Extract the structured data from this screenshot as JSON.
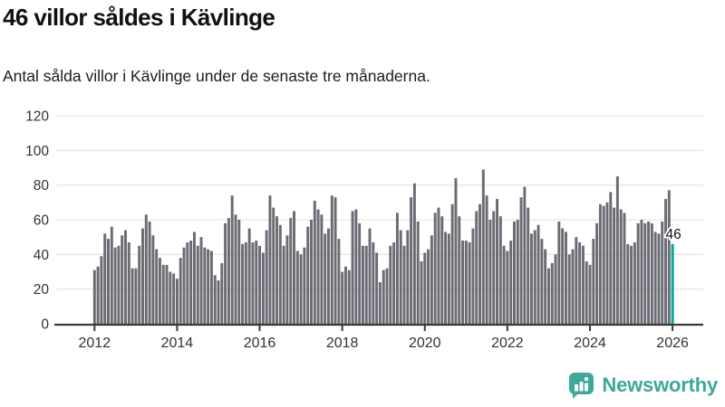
{
  "header": {
    "title": "46 villor såldes i Kävlinge",
    "subtitle": "Antal sålda villor i Kävlinge under de senaste tre månaderna."
  },
  "chart_data": {
    "type": "bar",
    "title": "46 villor såldes i Kävlinge",
    "subtitle": "Antal sålda villor i Kävlinge under de senaste tre månaderna.",
    "x_unit": "month",
    "x_start": "2012-01",
    "x_end": "2026-01",
    "ylim": [
      0,
      120
    ],
    "yticks": [
      0,
      20,
      40,
      60,
      80,
      100,
      120
    ],
    "xticks": [
      2012,
      2014,
      2016,
      2018,
      2020,
      2022,
      2024,
      2026
    ],
    "grid": "horizontal",
    "legend": "none",
    "values": [
      31,
      33,
      39,
      52,
      49,
      56,
      44,
      45,
      51,
      54,
      47,
      32,
      32,
      45,
      55,
      63,
      59,
      51,
      43,
      38,
      34,
      34,
      30,
      29,
      26,
      38,
      44,
      47,
      48,
      53,
      45,
      50,
      44,
      43,
      42,
      28,
      25,
      35,
      58,
      61,
      74,
      63,
      60,
      46,
      47,
      55,
      47,
      48,
      45,
      41,
      54,
      74,
      67,
      62,
      57,
      45,
      51,
      61,
      65,
      42,
      40,
      44,
      56,
      60,
      71,
      66,
      63,
      52,
      55,
      74,
      73,
      49,
      30,
      33,
      31,
      65,
      66,
      58,
      45,
      45,
      55,
      47,
      41,
      24,
      31,
      32,
      45,
      47,
      64,
      54,
      45,
      54,
      73,
      81,
      59,
      36,
      41,
      43,
      51,
      64,
      67,
      62,
      53,
      52,
      69,
      84,
      62,
      48,
      48,
      47,
      55,
      65,
      69,
      89,
      74,
      60,
      65,
      72,
      62,
      45,
      42,
      48,
      59,
      60,
      73,
      79,
      67,
      52,
      54,
      57,
      49,
      43,
      32,
      35,
      40,
      59,
      55,
      53,
      40,
      43,
      50,
      47,
      45,
      36,
      34,
      49,
      58,
      69,
      68,
      70,
      76,
      67,
      85,
      66,
      64,
      46,
      45,
      47,
      58,
      60,
      58,
      59,
      58,
      53,
      52,
      59,
      72,
      77,
      46
    ],
    "highlight_last": {
      "label": "46",
      "value": 46
    },
    "colors": {
      "bar": "#6b6b74",
      "highlight": "#00a89e",
      "grid": "#e6e6e6",
      "axis": "#3a3a3a",
      "tick_label": "#333333",
      "annotation": "#111111"
    }
  },
  "footer": {
    "brand": "Newsworthy",
    "brand_color": "#3da89b",
    "icon": "newsworthy-bubble-chart-icon"
  }
}
